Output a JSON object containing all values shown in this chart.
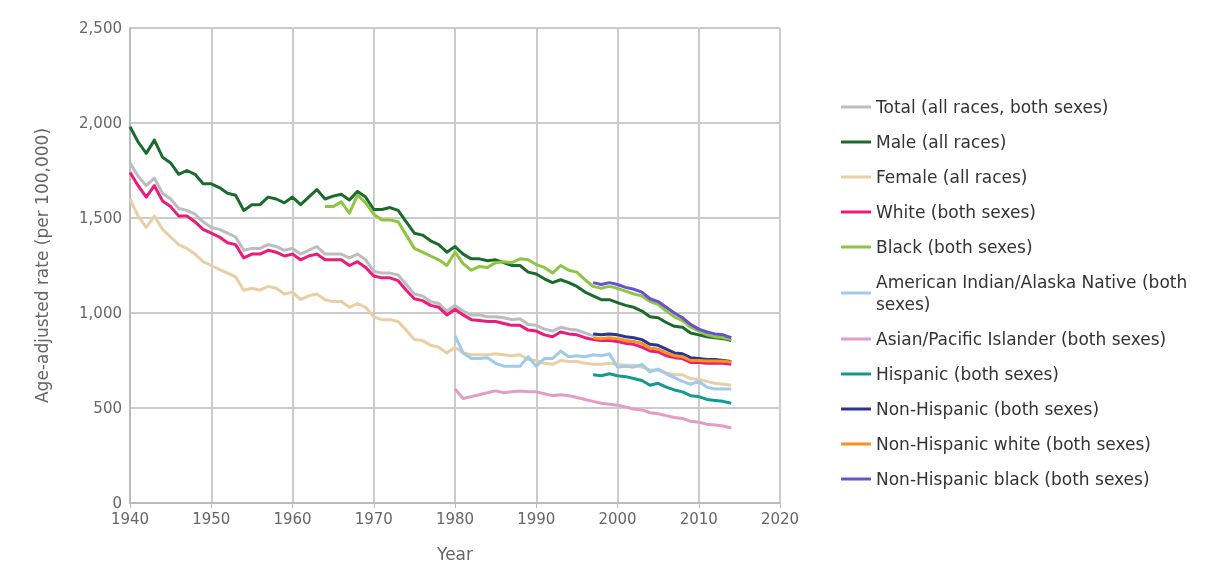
{
  "chart_data": {
    "type": "line",
    "xlabel": "Year",
    "ylabel": "Age-adjusted rate (per 100,000)",
    "xlim": [
      1940,
      2020
    ],
    "xticks": [
      1940,
      1950,
      1960,
      1970,
      1980,
      1990,
      2000,
      2010,
      2020
    ],
    "ylim": [
      0,
      2500
    ],
    "yticks": [
      0,
      500,
      {
        "value": 1000,
        "label": "1,000"
      },
      {
        "value": 1500,
        "label": "1,500"
      },
      {
        "value": 2000,
        "label": "2,000"
      },
      {
        "value": 2500,
        "label": "2,500"
      }
    ],
    "grid": true,
    "legend": "right",
    "line_style": "solid",
    "series": [
      {
        "name": "Total (all races, both sexes)",
        "color": "#bdbdbd",
        "x": [
          1940,
          1941,
          1942,
          1943,
          1944,
          1945,
          1946,
          1947,
          1948,
          1949,
          1950,
          1951,
          1952,
          1953,
          1954,
          1955,
          1956,
          1957,
          1958,
          1959,
          1960,
          1961,
          1962,
          1963,
          1964,
          1965,
          1966,
          1967,
          1968,
          1969,
          1970,
          1971,
          1972,
          1973,
          1974,
          1975,
          1976,
          1977,
          1978,
          1979,
          1980,
          1981,
          1982,
          1983,
          1984,
          1985,
          1986,
          1987,
          1988,
          1989,
          1990,
          1991,
          1992,
          1993,
          1994,
          1995,
          1996,
          1997
        ],
        "values": [
          1790,
          1720,
          1670,
          1710,
          1630,
          1600,
          1550,
          1540,
          1520,
          1480,
          1450,
          1440,
          1420,
          1400,
          1330,
          1340,
          1340,
          1360,
          1350,
          1330,
          1340,
          1310,
          1330,
          1350,
          1310,
          1310,
          1310,
          1290,
          1310,
          1280,
          1220,
          1210,
          1210,
          1200,
          1150,
          1100,
          1090,
          1060,
          1050,
          1010,
          1040,
          1010,
          990,
          990,
          980,
          980,
          975,
          965,
          970,
          940,
          935,
          915,
          905,
          925,
          915,
          910,
          895,
          880
        ]
      },
      {
        "name": "Male (all races)",
        "color": "#1b6b2f",
        "x": [
          1940,
          1941,
          1942,
          1943,
          1944,
          1945,
          1946,
          1947,
          1948,
          1949,
          1950,
          1951,
          1952,
          1953,
          1954,
          1955,
          1956,
          1957,
          1958,
          1959,
          1960,
          1961,
          1962,
          1963,
          1964,
          1965,
          1966,
          1967,
          1968,
          1969,
          1970,
          1971,
          1972,
          1973,
          1974,
          1975,
          1976,
          1977,
          1978,
          1979,
          1980,
          1981,
          1982,
          1983,
          1984,
          1985,
          1986,
          1987,
          1988,
          1989,
          1990,
          1991,
          1992,
          1993,
          1994,
          1995,
          1996,
          1997,
          1998,
          1999,
          2000,
          2001,
          2002,
          2003,
          2004,
          2005,
          2006,
          2007,
          2008,
          2009,
          2010,
          2011,
          2012,
          2013,
          2014
        ],
        "values": [
          1980,
          1900,
          1840,
          1910,
          1820,
          1790,
          1730,
          1750,
          1730,
          1680,
          1680,
          1660,
          1630,
          1620,
          1540,
          1570,
          1570,
          1610,
          1600,
          1580,
          1610,
          1570,
          1610,
          1650,
          1600,
          1615,
          1625,
          1595,
          1640,
          1610,
          1545,
          1545,
          1555,
          1540,
          1480,
          1420,
          1410,
          1380,
          1360,
          1320,
          1350,
          1310,
          1285,
          1285,
          1275,
          1280,
          1265,
          1250,
          1250,
          1215,
          1205,
          1180,
          1160,
          1175,
          1160,
          1140,
          1110,
          1090,
          1070,
          1070,
          1055,
          1040,
          1030,
          1010,
          980,
          975,
          950,
          930,
          925,
          895,
          885,
          875,
          870,
          865,
          855
        ]
      },
      {
        "name": "Female (all races)",
        "color": "#e8cfa4",
        "x": [
          1940,
          1941,
          1942,
          1943,
          1944,
          1945,
          1946,
          1947,
          1948,
          1949,
          1950,
          1951,
          1952,
          1953,
          1954,
          1955,
          1956,
          1957,
          1958,
          1959,
          1960,
          1961,
          1962,
          1963,
          1964,
          1965,
          1966,
          1967,
          1968,
          1969,
          1970,
          1971,
          1972,
          1973,
          1974,
          1975,
          1976,
          1977,
          1978,
          1979,
          1980,
          1981,
          1982,
          1983,
          1984,
          1985,
          1986,
          1987,
          1988,
          1989,
          1990,
          1991,
          1992,
          1993,
          1994,
          1995,
          1996,
          1997,
          1998,
          1999,
          2000,
          2001,
          2002,
          2003,
          2004,
          2005,
          2006,
          2007,
          2008,
          2009,
          2010,
          2011,
          2012,
          2013,
          2014
        ],
        "values": [
          1600,
          1510,
          1450,
          1510,
          1440,
          1400,
          1360,
          1340,
          1310,
          1270,
          1250,
          1230,
          1210,
          1190,
          1120,
          1130,
          1120,
          1140,
          1130,
          1100,
          1110,
          1070,
          1090,
          1100,
          1070,
          1060,
          1060,
          1030,
          1050,
          1030,
          980,
          965,
          965,
          955,
          910,
          860,
          855,
          830,
          820,
          790,
          820,
          790,
          780,
          780,
          780,
          785,
          780,
          775,
          780,
          755,
          750,
          735,
          730,
          750,
          745,
          745,
          735,
          730,
          730,
          735,
          730,
          725,
          725,
          715,
          700,
          700,
          685,
          675,
          675,
          655,
          650,
          640,
          630,
          625,
          620
        ]
      },
      {
        "name": "White (both sexes)",
        "color": "#ec1a7b",
        "x": [
          1940,
          1941,
          1942,
          1943,
          1944,
          1945,
          1946,
          1947,
          1948,
          1949,
          1950,
          1951,
          1952,
          1953,
          1954,
          1955,
          1956,
          1957,
          1958,
          1959,
          1960,
          1961,
          1962,
          1963,
          1964,
          1965,
          1966,
          1967,
          1968,
          1969,
          1970,
          1971,
          1972,
          1973,
          1974,
          1975,
          1976,
          1977,
          1978,
          1979,
          1980,
          1981,
          1982,
          1983,
          1984,
          1985,
          1986,
          1987,
          1988,
          1989,
          1990,
          1991,
          1992,
          1993,
          1994,
          1995,
          1996,
          1997,
          1998,
          1999,
          2000,
          2001,
          2002,
          2003,
          2004,
          2005,
          2006,
          2007,
          2008,
          2009,
          2010,
          2011,
          2012,
          2013,
          2014
        ],
        "values": [
          1740,
          1670,
          1610,
          1670,
          1590,
          1560,
          1510,
          1510,
          1480,
          1440,
          1420,
          1400,
          1370,
          1360,
          1290,
          1310,
          1310,
          1330,
          1320,
          1300,
          1310,
          1280,
          1300,
          1310,
          1280,
          1280,
          1280,
          1250,
          1270,
          1240,
          1195,
          1185,
          1185,
          1170,
          1120,
          1075,
          1065,
          1040,
          1030,
          990,
          1020,
          990,
          965,
          960,
          955,
          955,
          945,
          935,
          935,
          910,
          905,
          885,
          875,
          900,
          890,
          885,
          870,
          860,
          855,
          855,
          850,
          840,
          835,
          820,
          800,
          795,
          775,
          765,
          760,
          740,
          740,
          735,
          735,
          735,
          730
        ]
      },
      {
        "name": "Black (both sexes)",
        "color": "#8dc63f",
        "x": [
          1964,
          1965,
          1966,
          1967,
          1968,
          1969,
          1970,
          1971,
          1972,
          1973,
          1974,
          1975,
          1976,
          1977,
          1978,
          1979,
          1980,
          1981,
          1982,
          1983,
          1984,
          1985,
          1986,
          1987,
          1988,
          1989,
          1990,
          1991,
          1992,
          1993,
          1994,
          1995,
          1996,
          1997,
          1998,
          1999,
          2000,
          2001,
          2002,
          2003,
          2004,
          2005,
          2006,
          2007,
          2008,
          2009,
          2010,
          2011,
          2012,
          2013,
          2014
        ],
        "values": [
          1560,
          1560,
          1585,
          1525,
          1620,
          1580,
          1520,
          1490,
          1490,
          1480,
          1410,
          1340,
          1320,
          1300,
          1280,
          1250,
          1320,
          1260,
          1225,
          1245,
          1240,
          1265,
          1270,
          1265,
          1285,
          1280,
          1255,
          1240,
          1210,
          1250,
          1225,
          1215,
          1175,
          1140,
          1130,
          1140,
          1130,
          1115,
          1100,
          1090,
          1060,
          1045,
          1010,
          980,
          960,
          925,
          905,
          885,
          875,
          870,
          860
        ]
      },
      {
        "name": "American Indian/Alaska Native (both sexes)",
        "color": "#9ecbeb",
        "x": [
          1980,
          1981,
          1982,
          1983,
          1984,
          1985,
          1986,
          1987,
          1988,
          1989,
          1990,
          1991,
          1992,
          1993,
          1994,
          1995,
          1996,
          1997,
          1998,
          1999,
          2000,
          2001,
          2002,
          2003,
          2004,
          2005,
          2006,
          2007,
          2008,
          2009,
          2010,
          2011,
          2012,
          2013,
          2014
        ],
        "values": [
          880,
          790,
          760,
          760,
          765,
          735,
          720,
          720,
          720,
          770,
          720,
          760,
          760,
          800,
          770,
          775,
          770,
          780,
          775,
          785,
          715,
          720,
          715,
          730,
          690,
          705,
          680,
          660,
          640,
          625,
          640,
          610,
          600,
          600,
          600
        ]
      },
      {
        "name": "Asian/Pacific Islander (both sexes)",
        "color": "#e39bca",
        "x": [
          1980,
          1981,
          1982,
          1983,
          1984,
          1985,
          1986,
          1987,
          1988,
          1989,
          1990,
          1991,
          1992,
          1993,
          1994,
          1995,
          1996,
          1997,
          1998,
          1999,
          2000,
          2001,
          2002,
          2003,
          2004,
          2005,
          2006,
          2007,
          2008,
          2009,
          2010,
          2011,
          2012,
          2013,
          2014
        ],
        "values": [
          600,
          550,
          560,
          570,
          580,
          590,
          580,
          585,
          590,
          585,
          585,
          575,
          565,
          570,
          565,
          555,
          545,
          535,
          525,
          520,
          515,
          505,
          495,
          490,
          475,
          470,
          460,
          450,
          445,
          430,
          425,
          415,
          410,
          405,
          395
        ]
      },
      {
        "name": "Hispanic (both sexes)",
        "color": "#149a8e",
        "x": [
          1997,
          1998,
          1999,
          2000,
          2001,
          2002,
          2003,
          2004,
          2005,
          2006,
          2007,
          2008,
          2009,
          2010,
          2011,
          2012,
          2013,
          2014
        ],
        "values": [
          675,
          670,
          680,
          670,
          665,
          655,
          645,
          620,
          630,
          610,
          595,
          585,
          565,
          560,
          545,
          540,
          535,
          525
        ]
      },
      {
        "name": "Non-Hispanic (both sexes)",
        "color": "#2b3593",
        "x": [
          1997,
          1998,
          1999,
          2000,
          2001,
          2002,
          2003,
          2004,
          2005,
          2006,
          2007,
          2008,
          2009,
          2010,
          2011,
          2012,
          2013,
          2014
        ],
        "values": [
          890,
          885,
          890,
          885,
          875,
          870,
          860,
          835,
          830,
          810,
          790,
          785,
          765,
          760,
          755,
          755,
          750,
          745
        ]
      },
      {
        "name": "Non-Hispanic white (both sexes)",
        "color": "#f7941d",
        "x": [
          1997,
          1998,
          1999,
          2000,
          2001,
          2002,
          2003,
          2004,
          2005,
          2006,
          2007,
          2008,
          2009,
          2010,
          2011,
          2012,
          2013,
          2014
        ],
        "values": [
          870,
          865,
          870,
          865,
          855,
          850,
          840,
          815,
          810,
          790,
          775,
          770,
          750,
          750,
          748,
          748,
          746,
          742
        ]
      },
      {
        "name": "Non-Hispanic black (both sexes)",
        "color": "#6a4fd0",
        "x": [
          1997,
          1998,
          1999,
          2000,
          2001,
          2002,
          2003,
          2004,
          2005,
          2006,
          2007,
          2008,
          2009,
          2010,
          2011,
          2012,
          2013,
          2014
        ],
        "values": [
          1160,
          1150,
          1160,
          1150,
          1135,
          1125,
          1110,
          1075,
          1060,
          1030,
          1000,
          975,
          940,
          915,
          900,
          890,
          885,
          870
        ]
      }
    ]
  }
}
